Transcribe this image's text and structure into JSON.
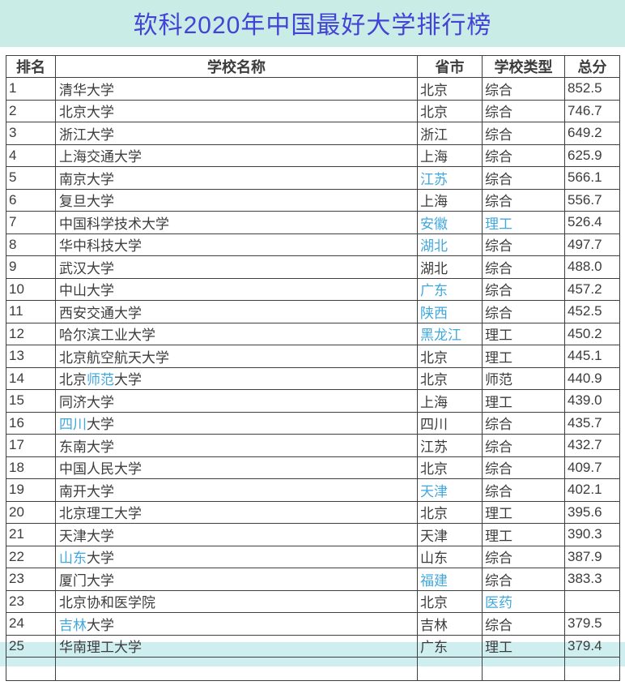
{
  "page": {
    "title": "软科2020年中国最好大学排行榜"
  },
  "colors": {
    "title": "#4343d6",
    "band_bg": "#c9ece7",
    "highlight": "#cfeef0",
    "link": "#41a8dd",
    "text": "#3c3c3c",
    "border": "#3f3f3f"
  },
  "table": {
    "headers": [
      "排名",
      "学校名称",
      "省市",
      "学校类型",
      "总分"
    ],
    "rows": [
      {
        "rank": "1",
        "name": [
          {
            "text": "清华大学",
            "highlight": false
          }
        ],
        "province": {
          "text": "北京",
          "highlight": false
        },
        "type": {
          "text": "综合",
          "highlight": false
        },
        "score": "852.5",
        "selected": false
      },
      {
        "rank": "2",
        "name": [
          {
            "text": "北京大学",
            "highlight": false
          }
        ],
        "province": {
          "text": "北京",
          "highlight": false
        },
        "type": {
          "text": "综合",
          "highlight": false
        },
        "score": "746.7",
        "selected": false
      },
      {
        "rank": "3",
        "name": [
          {
            "text": "浙江大学",
            "highlight": false
          }
        ],
        "province": {
          "text": "浙江",
          "highlight": false
        },
        "type": {
          "text": "综合",
          "highlight": false
        },
        "score": "649.2",
        "selected": false
      },
      {
        "rank": "4",
        "name": [
          {
            "text": "上海交通大学",
            "highlight": false
          }
        ],
        "province": {
          "text": "上海",
          "highlight": false
        },
        "type": {
          "text": "综合",
          "highlight": false
        },
        "score": "625.9",
        "selected": false
      },
      {
        "rank": "5",
        "name": [
          {
            "text": "南京大学",
            "highlight": false
          }
        ],
        "province": {
          "text": "江苏",
          "highlight": true
        },
        "type": {
          "text": "综合",
          "highlight": false
        },
        "score": "566.1",
        "selected": false
      },
      {
        "rank": "6",
        "name": [
          {
            "text": "复旦大学",
            "highlight": false
          }
        ],
        "province": {
          "text": "上海",
          "highlight": false
        },
        "type": {
          "text": "综合",
          "highlight": false
        },
        "score": "556.7",
        "selected": false
      },
      {
        "rank": "7",
        "name": [
          {
            "text": "中国科学技术大学",
            "highlight": false
          }
        ],
        "province": {
          "text": "安徽",
          "highlight": true
        },
        "type": {
          "text": "理工",
          "highlight": true
        },
        "score": "526.4",
        "selected": false
      },
      {
        "rank": "8",
        "name": [
          {
            "text": "华中科技大学",
            "highlight": false
          }
        ],
        "province": {
          "text": "湖北",
          "highlight": true
        },
        "type": {
          "text": "综合",
          "highlight": false
        },
        "score": "497.7",
        "selected": false
      },
      {
        "rank": "9",
        "name": [
          {
            "text": "武汉大学",
            "highlight": false
          }
        ],
        "province": {
          "text": "湖北",
          "highlight": false
        },
        "type": {
          "text": "综合",
          "highlight": false
        },
        "score": "488.0",
        "selected": false
      },
      {
        "rank": "10",
        "name": [
          {
            "text": "中山大学",
            "highlight": false
          }
        ],
        "province": {
          "text": "广东",
          "highlight": true
        },
        "type": {
          "text": "综合",
          "highlight": false
        },
        "score": "457.2",
        "selected": false
      },
      {
        "rank": "11",
        "name": [
          {
            "text": "西安交通大学",
            "highlight": false
          }
        ],
        "province": {
          "text": "陕西",
          "highlight": true
        },
        "type": {
          "text": "综合",
          "highlight": false
        },
        "score": "452.5",
        "selected": false
      },
      {
        "rank": "12",
        "name": [
          {
            "text": "哈尔滨工业大学",
            "highlight": false
          }
        ],
        "province": {
          "text": "黑龙江",
          "highlight": true
        },
        "type": {
          "text": "理工",
          "highlight": false
        },
        "score": "450.2",
        "selected": false
      },
      {
        "rank": "13",
        "name": [
          {
            "text": "北京航空航天大学",
            "highlight": false
          }
        ],
        "province": {
          "text": "北京",
          "highlight": false
        },
        "type": {
          "text": "理工",
          "highlight": false
        },
        "score": "445.1",
        "selected": false
      },
      {
        "rank": "14",
        "name": [
          {
            "text": "北京",
            "highlight": false
          },
          {
            "text": "师范",
            "highlight": true
          },
          {
            "text": "大学",
            "highlight": false
          }
        ],
        "province": {
          "text": "北京",
          "highlight": false
        },
        "type": {
          "text": "师范",
          "highlight": false
        },
        "score": "440.9",
        "selected": false
      },
      {
        "rank": "15",
        "name": [
          {
            "text": "同济大学",
            "highlight": false
          }
        ],
        "province": {
          "text": "上海",
          "highlight": false
        },
        "type": {
          "text": "理工",
          "highlight": false
        },
        "score": "439.0",
        "selected": false
      },
      {
        "rank": "16",
        "name": [
          {
            "text": "四川",
            "highlight": true
          },
          {
            "text": "大学",
            "highlight": false
          }
        ],
        "province": {
          "text": "四川",
          "highlight": false
        },
        "type": {
          "text": "综合",
          "highlight": false
        },
        "score": "435.7",
        "selected": false
      },
      {
        "rank": "17",
        "name": [
          {
            "text": "东南大学",
            "highlight": false
          }
        ],
        "province": {
          "text": "江苏",
          "highlight": false
        },
        "type": {
          "text": "综合",
          "highlight": false
        },
        "score": "432.7",
        "selected": false
      },
      {
        "rank": "18",
        "name": [
          {
            "text": "中国人民大学",
            "highlight": false
          }
        ],
        "province": {
          "text": "北京",
          "highlight": false
        },
        "type": {
          "text": "综合",
          "highlight": false
        },
        "score": "409.7",
        "selected": false
      },
      {
        "rank": "19",
        "name": [
          {
            "text": "南开大学",
            "highlight": false
          }
        ],
        "province": {
          "text": "天津",
          "highlight": true
        },
        "type": {
          "text": "综合",
          "highlight": false
        },
        "score": "402.1",
        "selected": false
      },
      {
        "rank": "20",
        "name": [
          {
            "text": "北京理工大学",
            "highlight": false
          }
        ],
        "province": {
          "text": "北京",
          "highlight": false
        },
        "type": {
          "text": "理工",
          "highlight": false
        },
        "score": "395.6",
        "selected": false
      },
      {
        "rank": "21",
        "name": [
          {
            "text": "天津大学",
            "highlight": false
          }
        ],
        "province": {
          "text": "天津",
          "highlight": false
        },
        "type": {
          "text": "理工",
          "highlight": false
        },
        "score": "390.3",
        "selected": false
      },
      {
        "rank": "22",
        "name": [
          {
            "text": "山东",
            "highlight": true
          },
          {
            "text": "大学",
            "highlight": false
          }
        ],
        "province": {
          "text": "山东",
          "highlight": false
        },
        "type": {
          "text": "综合",
          "highlight": false
        },
        "score": "387.9",
        "selected": false
      },
      {
        "rank": "23",
        "name": [
          {
            "text": "厦门大学",
            "highlight": false
          }
        ],
        "province": {
          "text": "福建",
          "highlight": true
        },
        "type": {
          "text": "综合",
          "highlight": false
        },
        "score": "383.3",
        "selected": false
      },
      {
        "rank": "23",
        "name": [
          {
            "text": "北京协和医学院",
            "highlight": false
          }
        ],
        "province": {
          "text": "北京",
          "highlight": false
        },
        "type": {
          "text": "医药",
          "highlight": true
        },
        "score": "",
        "selected": false
      },
      {
        "rank": "24",
        "name": [
          {
            "text": "吉林",
            "highlight": true
          },
          {
            "text": "大学",
            "highlight": false
          }
        ],
        "province": {
          "text": "吉林",
          "highlight": false
        },
        "type": {
          "text": "综合",
          "highlight": false
        },
        "score": "379.5",
        "selected": true
      },
      {
        "rank": "25",
        "name": [
          {
            "text": "华南理工大学",
            "highlight": false
          }
        ],
        "province": {
          "text": "广东",
          "highlight": false
        },
        "type": {
          "text": "理工",
          "highlight": false
        },
        "score": "379.4",
        "selected": false
      }
    ]
  }
}
